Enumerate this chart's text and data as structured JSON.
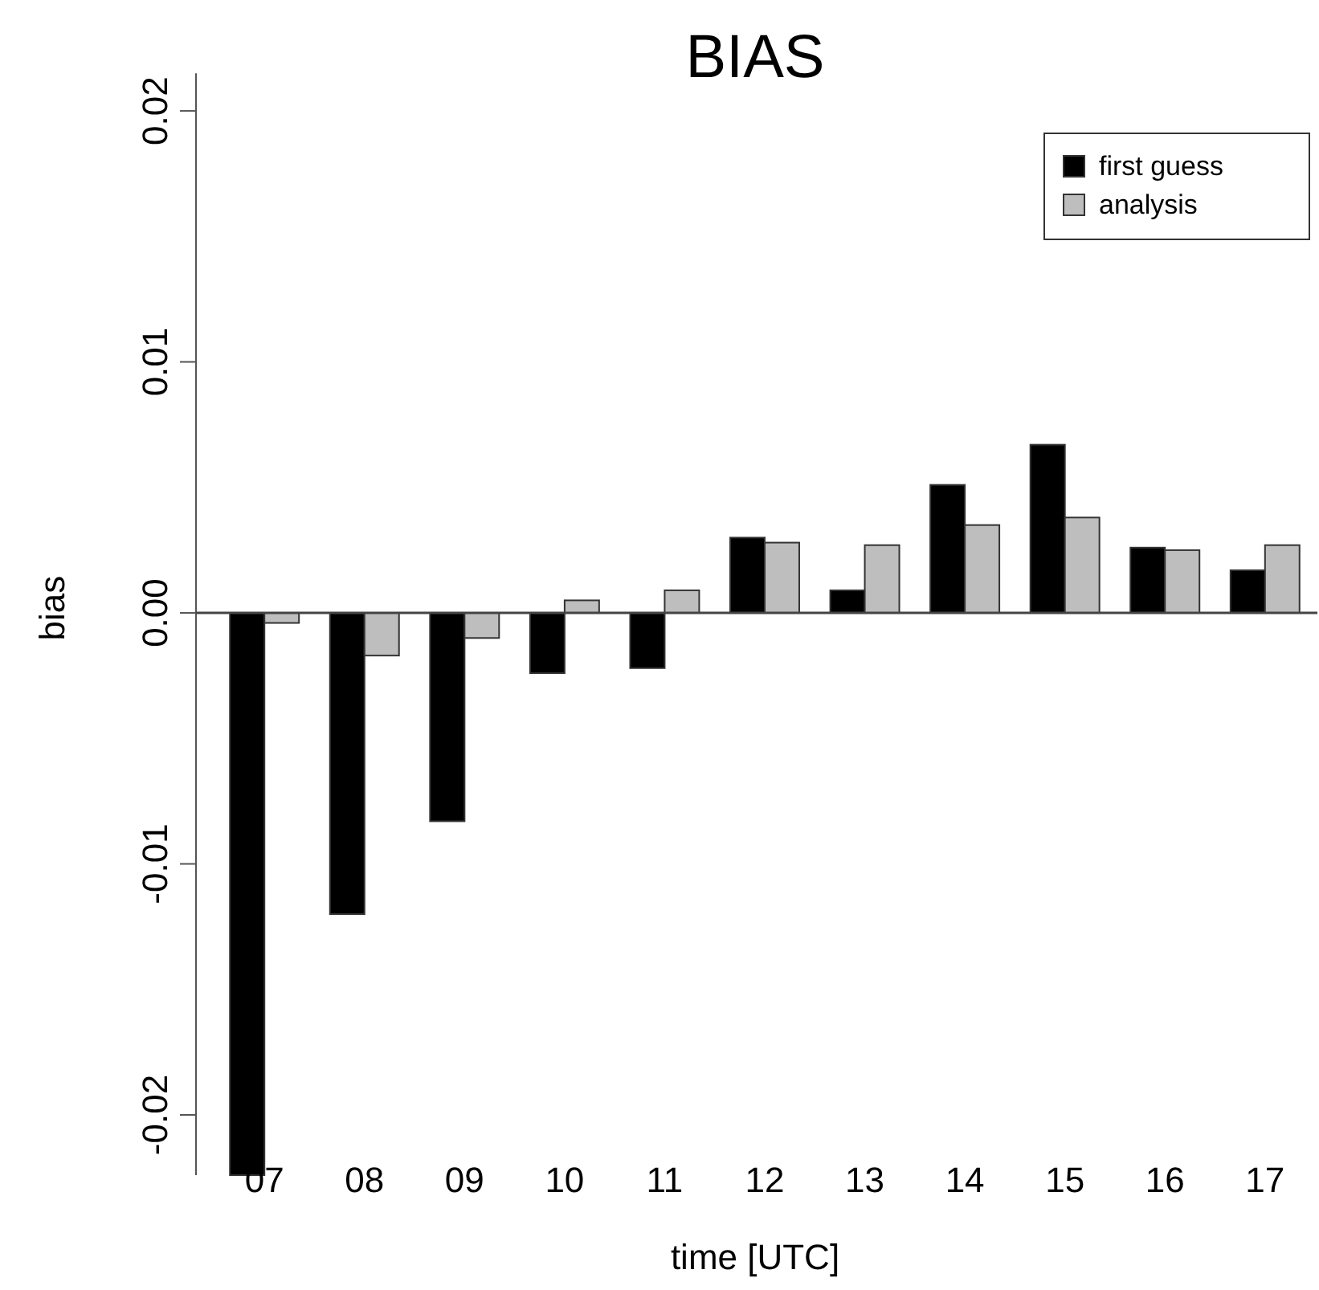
{
  "chart_data": {
    "type": "bar",
    "title": "BIAS",
    "xlabel": "time [UTC]",
    "ylabel": "bias",
    "categories": [
      "07",
      "08",
      "09",
      "10",
      "11",
      "12",
      "13",
      "14",
      "15",
      "16",
      "17"
    ],
    "series": [
      {
        "name": "first guess",
        "color": "#000000",
        "values": [
          -0.0224,
          -0.012,
          -0.0083,
          -0.0024,
          -0.0022,
          0.003,
          0.0009,
          0.0051,
          0.0067,
          0.0026,
          0.0017
        ]
      },
      {
        "name": "analysis",
        "color": "#bebebe",
        "values": [
          -0.0004,
          -0.0017,
          -0.001,
          0.0005,
          0.0009,
          0.0028,
          0.0027,
          0.0035,
          0.0038,
          0.0025,
          0.0027
        ]
      }
    ],
    "ylim": [
      -0.0224,
      0.0215
    ],
    "yticks": [
      {
        "value": -0.02,
        "label": "-0.02"
      },
      {
        "value": -0.01,
        "label": "-0.01"
      },
      {
        "value": 0,
        "label": "0.00"
      },
      {
        "value": 0.01,
        "label": "0.01"
      },
      {
        "value": 0.02,
        "label": "0.02"
      }
    ],
    "ref_lines": [
      {
        "axis": "y",
        "value": 0
      }
    ],
    "legend": "top right",
    "grid": false
  }
}
